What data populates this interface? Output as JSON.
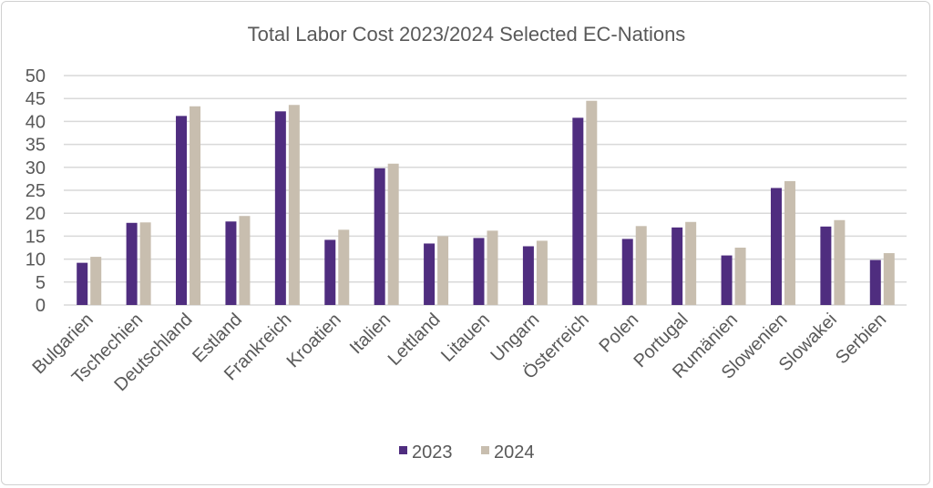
{
  "chart_data": {
    "type": "bar",
    "title": "Total Labor Cost 2023/2024 Selected EC-Nations",
    "xlabel": "",
    "ylabel": "",
    "ylim": [
      0,
      50
    ],
    "yticks": [
      0,
      5,
      10,
      15,
      20,
      25,
      30,
      35,
      40,
      45,
      50
    ],
    "grid": true,
    "legend_position": "bottom",
    "categories": [
      "Bulgarien",
      "Tschechien",
      "Deutschland",
      "Estland",
      "Frankreich",
      "Kroatien",
      "Italien",
      "Lettland",
      "Litauen",
      "Ungarn",
      "Österreich",
      "Polen",
      "Portugal",
      "Rumänien",
      "Slowenien",
      "Slowakei",
      "Serbien"
    ],
    "series": [
      {
        "name": "2023",
        "color": "#4f2d7f",
        "values": [
          9.2,
          17.9,
          41.2,
          18.2,
          42.2,
          14.2,
          29.8,
          13.4,
          14.6,
          12.8,
          40.8,
          14.4,
          16.9,
          10.8,
          25.5,
          17.1,
          9.8
        ]
      },
      {
        "name": "2024",
        "color": "#c8beaf",
        "values": [
          10.5,
          18.0,
          43.3,
          19.4,
          43.6,
          16.4,
          30.8,
          15.0,
          16.2,
          14.0,
          44.5,
          17.2,
          18.1,
          12.5,
          27.0,
          18.5,
          11.3
        ]
      }
    ]
  }
}
